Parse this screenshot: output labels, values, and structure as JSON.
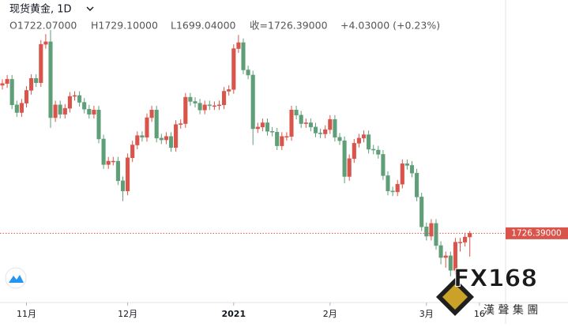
{
  "chart_data": {
    "type": "candlestick",
    "title": "现货黄金, 1D",
    "header_values": [
      "O1722.07000",
      "H1729.10000",
      "L1699.04000",
      "收=1726.39000",
      "+4.03000 (+0.23%)"
    ],
    "up_color": "#d9544a",
    "down_color": "#5f9f78",
    "ylim": [
      1648,
      2000
    ],
    "last_price": {
      "value": 1726.39,
      "label": "1726.39000"
    },
    "watermark": {
      "logo": "FX168",
      "subtitle": "漢 聲 集 團"
    },
    "categories": [
      null,
      null,
      null,
      null,
      null,
      "11月",
      null,
      null,
      null,
      null,
      null,
      null,
      null,
      null,
      null,
      null,
      null,
      null,
      null,
      null,
      null,
      null,
      null,
      null,
      null,
      null,
      "12月",
      null,
      null,
      null,
      null,
      null,
      null,
      null,
      null,
      null,
      null,
      null,
      null,
      null,
      null,
      null,
      null,
      null,
      null,
      null,
      null,
      null,
      "2021",
      null,
      null,
      null,
      null,
      null,
      null,
      null,
      null,
      null,
      null,
      null,
      null,
      null,
      null,
      null,
      null,
      null,
      null,
      null,
      "2月",
      null,
      null,
      null,
      null,
      null,
      null,
      null,
      null,
      null,
      null,
      null,
      null,
      null,
      null,
      null,
      null,
      null,
      null,
      null,
      "3月",
      null,
      null,
      null,
      null,
      null,
      null,
      null,
      null,
      null,
      null,
      "16"
    ],
    "open": [
      1900,
      1902,
      1907,
      1877,
      1868,
      1879,
      1894,
      1908,
      1903,
      1948,
      1951,
      1862,
      1877,
      1866,
      1873,
      1887,
      1888,
      1880,
      1872,
      1866,
      1871,
      1837,
      1807,
      1811,
      1811,
      1788,
      1776,
      1815,
      1830,
      1841,
      1839,
      1862,
      1871,
      1838,
      1836,
      1840,
      1827,
      1854,
      1855,
      1886,
      1881,
      1879,
      1871,
      1877,
      1876,
      1876,
      1877,
      1893,
      1895,
      1943,
      1950,
      1918,
      1912,
      1849,
      1851,
      1856,
      1846,
      1845,
      1829,
      1840,
      1840,
      1871,
      1865,
      1855,
      1856,
      1851,
      1844,
      1843,
      1848,
      1860,
      1839,
      1835,
      1793,
      1814,
      1832,
      1838,
      1842,
      1825,
      1824,
      1819,
      1794,
      1776,
      1775,
      1784,
      1808,
      1806,
      1797,
      1769,
      1734,
      1723,
      1738,
      1712,
      1698,
      1700,
      1683,
      1716,
      1716,
      1722.07,
      null,
      null
    ],
    "high": [
      1907,
      1912,
      1912,
      1882,
      1884,
      1899,
      1913,
      1913,
      1953,
      1960,
      1965,
      1882,
      1882,
      1878,
      1892,
      1893,
      1893,
      1885,
      1877,
      1876,
      1876,
      1842,
      1816,
      1816,
      1816,
      1793,
      1820,
      1835,
      1846,
      1846,
      1867,
      1876,
      1876,
      1843,
      1845,
      1845,
      1859,
      1860,
      1891,
      1891,
      1886,
      1884,
      1882,
      1882,
      1881,
      1882,
      1898,
      1900,
      1948,
      1959,
      1955,
      1923,
      1917,
      1856,
      1861,
      1861,
      1851,
      1850,
      1845,
      1845,
      1876,
      1876,
      1870,
      1861,
      1861,
      1856,
      1849,
      1853,
      1865,
      1865,
      1844,
      1840,
      1819,
      1837,
      1843,
      1847,
      1847,
      1830,
      1829,
      1824,
      1799,
      1781,
      1789,
      1813,
      1813,
      1811,
      1802,
      1774,
      1739,
      1743,
      1743,
      1717,
      1705,
      1705,
      1721,
      1721,
      1727,
      1729.1,
      null,
      null
    ],
    "low": [
      1895,
      1897,
      1872,
      1863,
      1863,
      1874,
      1889,
      1898,
      1898,
      1943,
      1850,
      1857,
      1861,
      1861,
      1868,
      1882,
      1875,
      1867,
      1861,
      1861,
      1832,
      1802,
      1802,
      1806,
      1783,
      1764,
      1771,
      1810,
      1825,
      1834,
      1834,
      1857,
      1833,
      1831,
      1831,
      1822,
      1822,
      1849,
      1850,
      1876,
      1874,
      1866,
      1866,
      1871,
      1871,
      1871,
      1872,
      1888,
      1890,
      1938,
      1913,
      1907,
      1830,
      1844,
      1846,
      1841,
      1840,
      1824,
      1824,
      1835,
      1835,
      1860,
      1850,
      1850,
      1846,
      1839,
      1838,
      1838,
      1843,
      1834,
      1830,
      1785,
      1788,
      1809,
      1827,
      1833,
      1820,
      1819,
      1814,
      1789,
      1771,
      1770,
      1770,
      1779,
      1801,
      1792,
      1764,
      1729,
      1718,
      1718,
      1707,
      1690,
      1686,
      1676,
      1678,
      1705,
      1711,
      1699.04,
      null,
      null
    ],
    "close": [
      1902,
      1907,
      1877,
      1868,
      1879,
      1894,
      1908,
      1903,
      1948,
      1951,
      1862,
      1877,
      1866,
      1873,
      1887,
      1888,
      1880,
      1872,
      1866,
      1871,
      1837,
      1807,
      1811,
      1811,
      1788,
      1776,
      1815,
      1830,
      1841,
      1839,
      1862,
      1871,
      1838,
      1836,
      1840,
      1827,
      1854,
      1855,
      1886,
      1881,
      1879,
      1871,
      1877,
      1876,
      1876,
      1877,
      1893,
      1895,
      1943,
      1950,
      1918,
      1912,
      1849,
      1851,
      1856,
      1846,
      1845,
      1829,
      1840,
      1840,
      1871,
      1865,
      1855,
      1856,
      1851,
      1844,
      1843,
      1848,
      1860,
      1839,
      1835,
      1793,
      1814,
      1832,
      1838,
      1842,
      1825,
      1824,
      1819,
      1794,
      1776,
      1775,
      1784,
      1808,
      1806,
      1797,
      1769,
      1734,
      1723,
      1738,
      1712,
      1698,
      1700,
      1683,
      1716,
      1716,
      1722,
      1726.39,
      null,
      null
    ]
  }
}
